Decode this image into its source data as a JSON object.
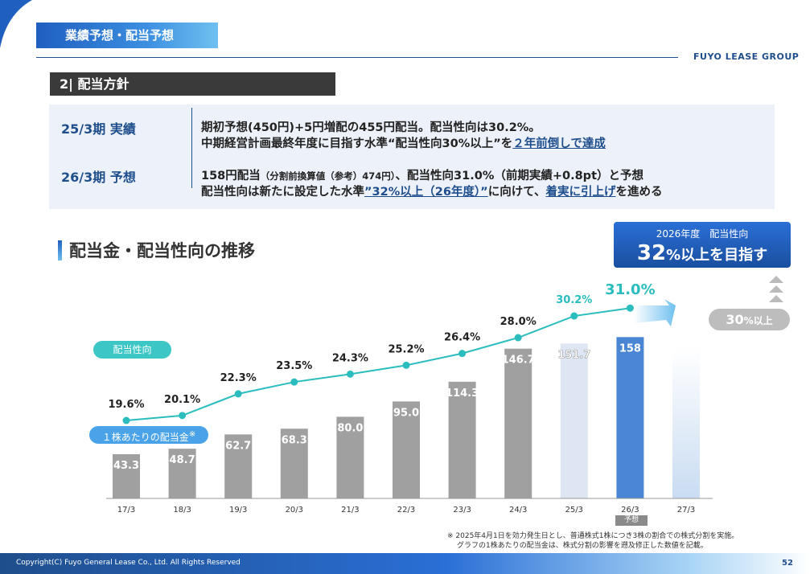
{
  "header": {
    "section_tag": "業績予想・配当予想",
    "logo": "FUYO LEASE GROUP"
  },
  "subheading": "2| 配当方針",
  "policy": {
    "row1": {
      "label": "25/3期 実績",
      "line1": "期初予想(450円)+5円増配の455円配当。配当性向は30.2%。",
      "line2_a": "中期経営計画最終年度に目指す水準“配当性向30%以上”を",
      "line2_b": "２年前倒しで達成"
    },
    "row2": {
      "label": "26/3期 予想",
      "line1_a": "158円配当",
      "line1_b": "（分割前換算値（参考）474円）",
      "line1_c": "、配当性向31.0%（前期実績+0.8pt）と予想",
      "line2_a": "配当性向は新たに設定した水準",
      "line2_b": "”32%以上（26年度）”",
      "line2_c": "に向けて、",
      "line2_d": "着実に引上げ",
      "line2_e": "を進める"
    }
  },
  "chart_title": "配当金・配当性向の推移",
  "target": {
    "label": "2026年度　配当性向",
    "value": "32",
    "rest": "%以上を目指す"
  },
  "pill_30": {
    "value": "30",
    "rest": "%以上"
  },
  "legend": {
    "ratio": "配当性向",
    "dividend": "１株あたりの配当金",
    "dividend_mark": "※"
  },
  "forecast_tag": "予想",
  "chart_data": {
    "type": "bar",
    "categories": [
      "17/3",
      "18/3",
      "19/3",
      "20/3",
      "21/3",
      "22/3",
      "23/3",
      "24/3",
      "25/3",
      "26/3",
      "27/3"
    ],
    "series": [
      {
        "name": "１株あたりの配当金",
        "type": "bar",
        "values": [
          43.3,
          48.7,
          62.7,
          68.3,
          80.0,
          95.0,
          114.3,
          146.7,
          151.7,
          158,
          null
        ],
        "labels": [
          "43.3",
          "48.7",
          "62.7",
          "68.3",
          "80.0",
          "95.0",
          "114.3",
          "146.7",
          "151.7",
          "158",
          ""
        ]
      },
      {
        "name": "配当性向",
        "type": "line",
        "values": [
          19.6,
          20.1,
          22.3,
          23.5,
          24.3,
          25.2,
          26.4,
          28.0,
          30.2,
          31.0,
          null
        ],
        "labels": [
          "19.6%",
          "20.1%",
          "22.3%",
          "23.5%",
          "24.3%",
          "25.2%",
          "26.4%",
          "28.0%",
          "30.2%",
          "31.0%",
          ""
        ]
      }
    ],
    "colors": {
      "bar_actual": "#a0a0a0",
      "bar_restated": "#dde6f2",
      "bar_forecast": "#4a86d4",
      "bar_target": "#dde9f6",
      "line": "#2bbdbd"
    }
  },
  "footnote": {
    "line1": "※ 2025年4月1日を効力発生日とし、普通株式1株につき3株の割合での株式分割を実施。",
    "line2": "グラフの1株あたりの配当金は、株式分割の影響を遡及修正した数値を記載。"
  },
  "footer": {
    "copyright": "Copyright(C) Fuyo General Lease Co., Ltd. All Rights Reserved",
    "page": "52"
  }
}
